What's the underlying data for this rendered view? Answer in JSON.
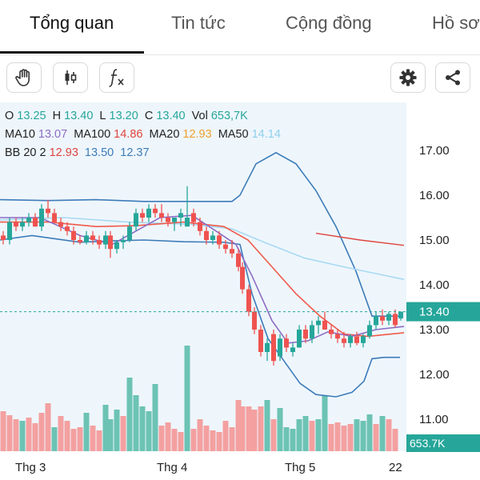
{
  "tabs": [
    {
      "label": "Tổng quan",
      "active": true
    },
    {
      "label": "Tin tức",
      "active": false
    },
    {
      "label": "Cộng đồng",
      "active": false
    },
    {
      "label": "Hồ sơ",
      "active": false
    }
  ],
  "toolbar": {
    "left_tools": [
      "hand-icon",
      "candlestick-icon",
      "function-icon"
    ],
    "right_tools": [
      "gear-icon",
      "share-icon"
    ]
  },
  "ohlc": {
    "o_label": "O",
    "o_value": "13.25",
    "h_label": "H",
    "h_value": "13.40",
    "l_label": "L",
    "l_value": "13.20",
    "c_label": "C",
    "c_value": "13.40",
    "vol_label": "Vol",
    "vol_value": "653,7K"
  },
  "ma": {
    "ma10_label": "MA10",
    "ma10_value": "13.07",
    "ma100_label": "MA100",
    "ma100_value": "14.86",
    "ma20_label": "MA20",
    "ma20_value": "12.93",
    "ma50_label": "MA50",
    "ma50_value": "14.14"
  },
  "bb": {
    "label": "BB 20 2",
    "mid": "12.93",
    "upper": "13.50",
    "lower": "12.37"
  },
  "colors": {
    "up": "#26a69a",
    "down": "#ef5350",
    "bb": "#3d7bb8",
    "ma10": "#8e6cc4",
    "ma20": "#f05a4b",
    "ma50": "#a9d9f2",
    "ma100": "#e0453f",
    "price_tag": "#26a69a"
  },
  "price_tag": "13.40",
  "volume_tag": "653.7K",
  "chart_data": {
    "type": "candlestick",
    "y_ticks": [
      "17.00",
      "16.00",
      "15.00",
      "14.00",
      "13.00",
      "12.00",
      "11.00"
    ],
    "ylim": [
      11,
      17
    ],
    "x_ticks": [
      "Thg 3",
      "Thg 4",
      "Thg 5",
      "22"
    ],
    "last_price": 13.4
  }
}
